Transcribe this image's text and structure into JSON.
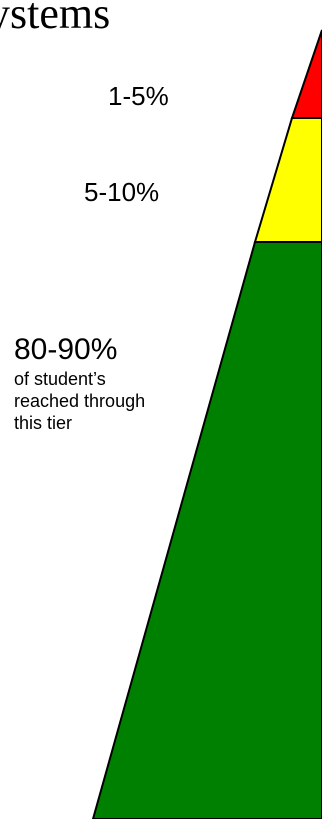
{
  "title": "ystems",
  "tiers": [
    {
      "label": "1-5%",
      "color": "#ff0000"
    },
    {
      "label": "5-10%",
      "color": "#ffff00"
    },
    {
      "label": "80-90%",
      "description": "of student’s reached through this tier",
      "color": "#008000"
    }
  ]
}
